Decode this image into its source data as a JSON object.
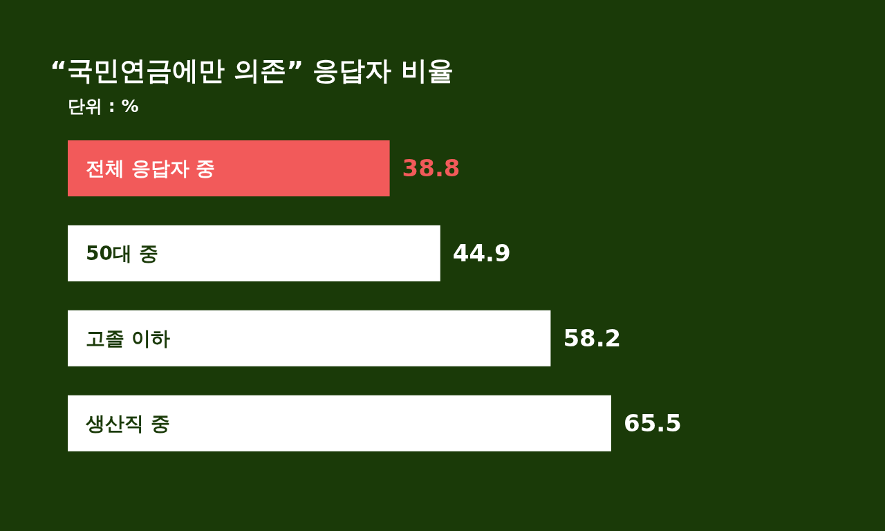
{
  "chart_data": {
    "type": "bar",
    "orientation": "horizontal",
    "title": "“국민연금에만 의존” 응답자 비율",
    "subtitle": "단위 : %",
    "categories": [
      "전체 응답자 중",
      "50대 중",
      "고졸 이하",
      "생산직 중"
    ],
    "values": [
      38.8,
      44.9,
      58.2,
      65.5
    ],
    "colors": [
      "#f25a5a",
      "#ffffff",
      "#ffffff",
      "#ffffff"
    ],
    "data_labels": true
  }
}
